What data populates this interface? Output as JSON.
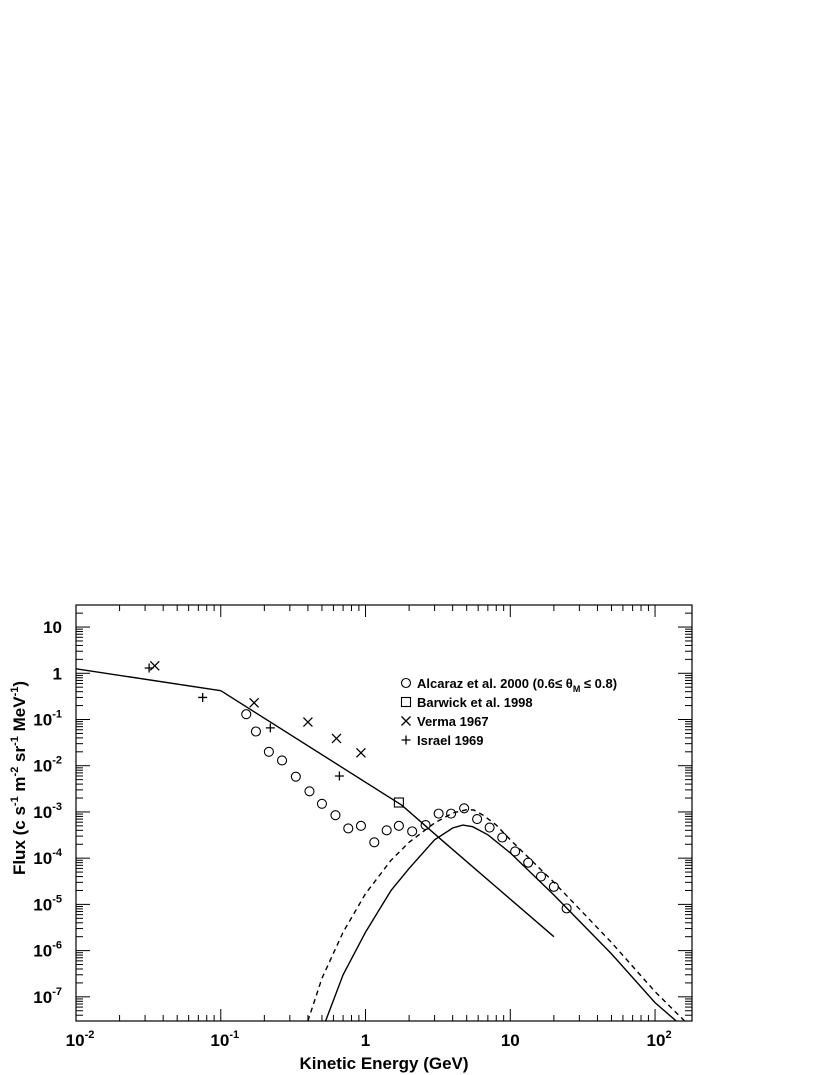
{
  "chart_data": {
    "type": "scatter",
    "xlabel": "Kinetic Energy (GeV)",
    "ylabel_parts": [
      "Flux (c s",
      "-1",
      " m",
      "-2",
      " sr",
      "-1",
      " MeV",
      "-1",
      ")"
    ],
    "x_scale": "log",
    "y_scale": "log",
    "xlim": [
      0.01,
      180
    ],
    "ylim": [
      3e-08,
      30
    ],
    "x_ticks": [
      {
        "value": 0.01,
        "base": "10",
        "exp": "-2"
      },
      {
        "value": 0.1,
        "base": "10",
        "exp": "-1"
      },
      {
        "value": 1,
        "base": "1",
        "exp": ""
      },
      {
        "value": 10,
        "base": "10",
        "exp": ""
      },
      {
        "value": 100,
        "base": "10",
        "exp": "2"
      }
    ],
    "y_ticks": [
      {
        "value": 10,
        "base": "10",
        "exp": ""
      },
      {
        "value": 1,
        "base": "1",
        "exp": ""
      },
      {
        "value": 0.1,
        "base": "10",
        "exp": "-1"
      },
      {
        "value": 0.01,
        "base": "10",
        "exp": "-2"
      },
      {
        "value": 0.001,
        "base": "10",
        "exp": "-3"
      },
      {
        "value": 0.0001,
        "base": "10",
        "exp": "-4"
      },
      {
        "value": 1e-05,
        "base": "10",
        "exp": "-5"
      },
      {
        "value": 1e-06,
        "base": "10",
        "exp": "-6"
      },
      {
        "value": 1e-07,
        "base": "10",
        "exp": "-7"
      }
    ],
    "grid": false,
    "legend_position": "top-right",
    "series": [
      {
        "name": "Alcaraz et al. 2000 (0.6≤ θM ≤ 0.8)",
        "legend_prefix": "Alcaraz et al. 2000 (0.6≤ θ",
        "legend_sub": "M",
        "legend_suffix": " ≤ 0.8)",
        "marker": "circle",
        "x": [
          0.15,
          0.175,
          0.215,
          0.265,
          0.33,
          0.41,
          0.5,
          0.62,
          0.76,
          0.93,
          1.15,
          1.4,
          1.7,
          2.1,
          2.6,
          3.2,
          3.9,
          4.8,
          5.9,
          7.2,
          8.8,
          10.8,
          13.3,
          16.3,
          20.0,
          24.5
        ],
        "y": [
          0.13,
          0.055,
          0.02,
          0.013,
          0.0058,
          0.0028,
          0.0015,
          0.00085,
          0.00044,
          0.0005,
          0.00022,
          0.0004,
          0.0005,
          0.00038,
          0.00052,
          0.00092,
          0.00092,
          0.0012,
          0.0007,
          0.00046,
          0.00028,
          0.00014,
          8e-05,
          4e-05,
          2.4e-05,
          8.2e-06
        ]
      },
      {
        "name": "Barwick et al. 1998",
        "marker": "square",
        "x": [
          1.7
        ],
        "y": [
          0.0016
        ]
      },
      {
        "name": "Verma 1967",
        "marker": "x",
        "x": [
          0.035,
          0.17,
          0.4,
          0.63,
          0.93
        ],
        "y": [
          1.45,
          0.23,
          0.088,
          0.039,
          0.019
        ]
      },
      {
        "name": "Israel 1969",
        "marker": "plus",
        "x": [
          0.032,
          0.075,
          0.22,
          0.66
        ],
        "y": [
          1.3,
          0.3,
          0.066,
          0.006
        ]
      }
    ],
    "curves": [
      {
        "style": "solid",
        "x": [
          0.01,
          0.1
        ],
        "y": [
          1.25,
          0.42
        ]
      },
      {
        "style": "solid",
        "x": [
          0.1,
          1.78,
          3.5,
          20.0
        ],
        "y": [
          0.42,
          0.0014,
          0.00022,
          2e-06
        ]
      },
      {
        "style": "solid",
        "x": [
          0.53,
          0.7,
          1.0,
          1.5,
          2.0,
          3.0,
          4.0,
          4.7,
          5.5,
          7.0,
          10.0,
          20.0,
          50.0,
          100.0,
          140.0
        ],
        "y": [
          3e-08,
          3e-07,
          2.5e-06,
          2e-05,
          6e-05,
          0.00025,
          0.00045,
          0.00052,
          0.00048,
          0.00032,
          0.00013,
          1.6e-05,
          8.5e-07,
          7.5e-08,
          3e-08
        ]
      },
      {
        "style": "dashed",
        "x": [
          0.4,
          0.5,
          0.7,
          1.0,
          1.5,
          2.0,
          3.0,
          4.0,
          5.0,
          5.6,
          6.5,
          8.0,
          10.0,
          20.0,
          50.0,
          100.0,
          160.0
        ],
        "y": [
          3e-08,
          2.5e-07,
          2.5e-06,
          1.7e-05,
          9e-05,
          0.00022,
          0.00058,
          0.00095,
          0.00112,
          0.0011,
          0.00085,
          0.00052,
          0.00025,
          3e-05,
          1.5e-06,
          1.3e-07,
          3e-08
        ]
      }
    ]
  }
}
